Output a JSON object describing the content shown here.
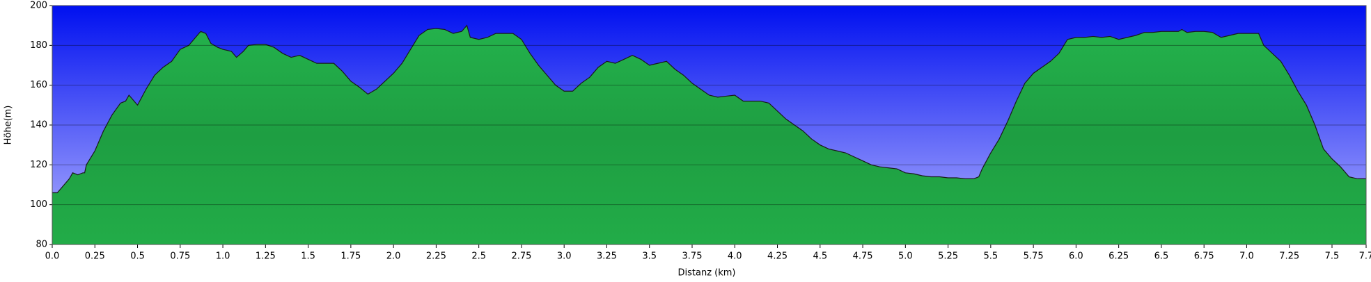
{
  "chart_data": {
    "type": "area",
    "x_label": "Distanz  (km)",
    "y_label": "Höhe(m)",
    "color": "#22aa47",
    "line_color": "#1a1a1a",
    "grid": true,
    "xlim": [
      0,
      7.7
    ],
    "ylim": [
      80,
      200
    ],
    "xticks": [
      {
        "value": 0,
        "label": "0.0"
      },
      0.25,
      0.5,
      0.75,
      {
        "value": 1,
        "label": "1.0"
      },
      1.25,
      1.5,
      1.75,
      {
        "value": 2,
        "label": "2.0"
      },
      2.25,
      2.5,
      2.75,
      {
        "value": 3,
        "label": "3.0"
      },
      3.25,
      3.5,
      3.75,
      {
        "value": 4,
        "label": "4.0"
      },
      4.25,
      4.5,
      4.75,
      {
        "value": 5,
        "label": "5.0"
      },
      5.25,
      5.5,
      5.75,
      {
        "value": 6,
        "label": "6.0"
      },
      6.25,
      6.5,
      6.75,
      {
        "value": 7,
        "label": "7.0"
      },
      7.25,
      7.5,
      7.7
    ],
    "yticks": [
      80,
      100,
      120,
      140,
      160,
      180,
      200
    ],
    "x": [
      0,
      0.03,
      0.05,
      0.1,
      0.12,
      0.15,
      0.18,
      0.19,
      0.2,
      0.25,
      0.3,
      0.35,
      0.4,
      0.43,
      0.45,
      0.48,
      0.5,
      0.55,
      0.6,
      0.65,
      0.7,
      0.75,
      0.8,
      0.83,
      0.87,
      0.9,
      0.93,
      0.97,
      1.0,
      1.05,
      1.08,
      1.12,
      1.15,
      1.2,
      1.25,
      1.3,
      1.35,
      1.4,
      1.45,
      1.5,
      1.55,
      1.6,
      1.65,
      1.7,
      1.75,
      1.8,
      1.85,
      1.9,
      1.95,
      2.0,
      2.05,
      2.1,
      2.15,
      2.2,
      2.25,
      2.3,
      2.35,
      2.4,
      2.43,
      2.45,
      2.5,
      2.55,
      2.6,
      2.65,
      2.7,
      2.75,
      2.8,
      2.85,
      2.9,
      2.95,
      3.0,
      3.05,
      3.1,
      3.15,
      3.2,
      3.25,
      3.3,
      3.35,
      3.4,
      3.45,
      3.5,
      3.55,
      3.6,
      3.65,
      3.7,
      3.75,
      3.8,
      3.85,
      3.9,
      3.95,
      4.0,
      4.05,
      4.1,
      4.15,
      4.2,
      4.25,
      4.3,
      4.35,
      4.4,
      4.45,
      4.5,
      4.55,
      4.6,
      4.65,
      4.7,
      4.75,
      4.8,
      4.85,
      4.9,
      4.95,
      5.0,
      5.05,
      5.1,
      5.15,
      5.2,
      5.25,
      5.3,
      5.35,
      5.4,
      5.43,
      5.45,
      5.5,
      5.55,
      5.6,
      5.65,
      5.7,
      5.75,
      5.8,
      5.85,
      5.9,
      5.95,
      6.0,
      6.05,
      6.1,
      6.15,
      6.2,
      6.25,
      6.3,
      6.35,
      6.4,
      6.45,
      6.5,
      6.55,
      6.6,
      6.62,
      6.65,
      6.7,
      6.75,
      6.8,
      6.85,
      6.9,
      6.95,
      7.0,
      7.05,
      7.07,
      7.1,
      7.15,
      7.2,
      7.25,
      7.3,
      7.35,
      7.4,
      7.45,
      7.5,
      7.55,
      7.6,
      7.65,
      7.7
    ],
    "values": [
      106,
      106,
      108,
      113,
      116,
      115,
      116,
      116,
      120,
      127,
      137,
      145,
      151,
      152,
      155,
      152,
      150,
      158,
      165,
      169,
      172,
      178,
      180,
      183,
      187,
      186,
      181,
      179,
      178,
      177,
      174,
      177,
      180,
      180.5,
      180.5,
      179,
      176,
      174,
      175,
      173,
      171,
      171,
      171,
      167,
      162,
      159,
      155.5,
      158,
      162,
      166,
      171,
      178,
      185,
      188,
      188.5,
      188,
      186,
      187,
      190,
      184,
      183,
      184,
      186,
      186,
      186,
      183,
      176,
      170,
      165,
      160,
      157,
      157,
      161,
      164,
      169,
      172,
      171,
      173,
      175,
      173,
      170,
      171,
      172,
      168,
      165,
      161,
      158,
      155,
      154,
      154.5,
      155,
      152,
      152,
      152,
      151,
      147,
      143,
      140,
      137,
      133,
      130,
      128,
      127,
      126,
      124,
      122,
      120,
      119,
      118.5,
      118,
      116,
      115.5,
      114.5,
      114,
      114,
      113.5,
      113.5,
      113,
      113,
      114,
      118,
      126,
      133,
      142,
      152,
      161,
      166,
      169,
      172,
      176,
      183,
      184,
      184,
      184.5,
      184,
      184.5,
      183,
      184,
      185,
      186.5,
      186.5,
      187,
      187,
      187,
      188,
      186.5,
      187,
      187,
      186.5,
      184,
      185,
      186,
      186,
      186,
      186,
      180,
      176,
      172,
      165,
      157,
      150,
      140,
      128,
      123,
      119,
      114,
      113,
      113
    ]
  }
}
